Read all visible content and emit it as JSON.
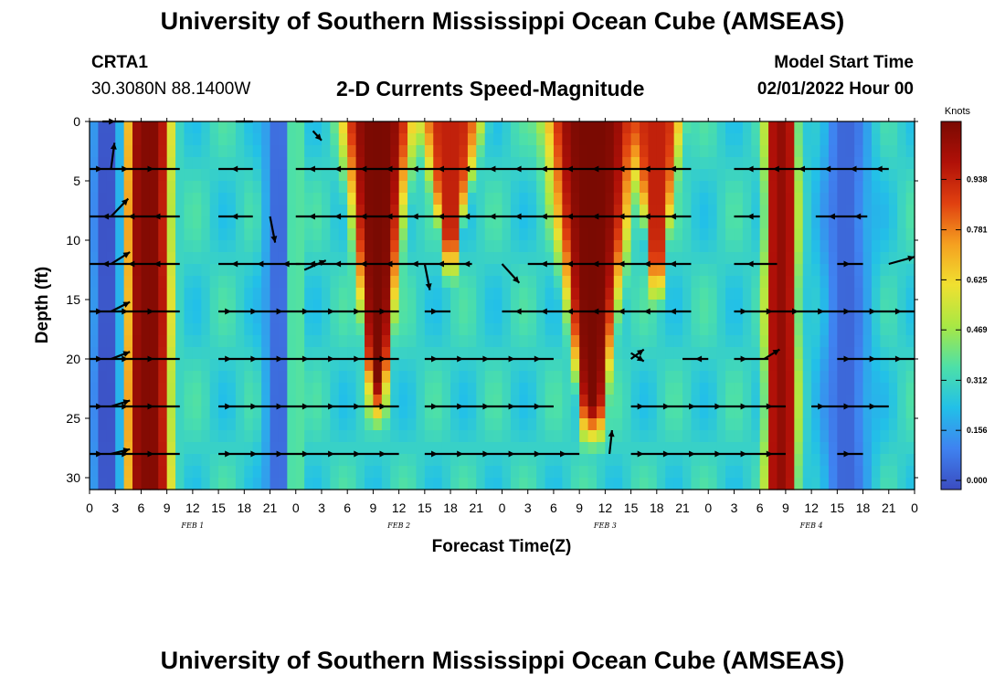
{
  "header": {
    "title": "University of Southern Mississippi Ocean Cube (AMSEAS)",
    "station_id": "CRTA1",
    "station_coords": "30.3080N  88.1400W",
    "plot_title": "2-D Currents Speed-Magnitude",
    "model_start_label": "Model Start Time",
    "model_start_value": "02/01/2022 Hour 00"
  },
  "footer": {
    "title": "University of Southern Mississippi Ocean Cube (AMSEAS)"
  },
  "colors": {
    "ramp": [
      "#3b4cc0",
      "#3f82f0",
      "#22c0e8",
      "#4de0a8",
      "#a8e844",
      "#f0e030",
      "#f5a020",
      "#e04010",
      "#b01008",
      "#7a0a02"
    ]
  },
  "chart_data": {
    "type": "heatmap",
    "title": "2-D Currents Speed-Magnitude",
    "xlabel": "Forecast Time(Z)",
    "ylabel": "Depth (ft)",
    "x_hours_range": [
      0,
      96
    ],
    "y_range": [
      0,
      31
    ],
    "x_ticks": [
      {
        "hour": 0,
        "label": "0"
      },
      {
        "hour": 3,
        "label": "3"
      },
      {
        "hour": 6,
        "label": "6"
      },
      {
        "hour": 9,
        "label": "9"
      },
      {
        "hour": 12,
        "label": "12"
      },
      {
        "hour": 15,
        "label": "15"
      },
      {
        "hour": 18,
        "label": "18"
      },
      {
        "hour": 21,
        "label": "21"
      },
      {
        "hour": 24,
        "label": "0"
      },
      {
        "hour": 27,
        "label": "3"
      },
      {
        "hour": 30,
        "label": "6"
      },
      {
        "hour": 33,
        "label": "9"
      },
      {
        "hour": 36,
        "label": "12"
      },
      {
        "hour": 39,
        "label": "15"
      },
      {
        "hour": 42,
        "label": "18"
      },
      {
        "hour": 45,
        "label": "21"
      },
      {
        "hour": 48,
        "label": "0"
      },
      {
        "hour": 51,
        "label": "3"
      },
      {
        "hour": 54,
        "label": "6"
      },
      {
        "hour": 57,
        "label": "9"
      },
      {
        "hour": 60,
        "label": "12"
      },
      {
        "hour": 63,
        "label": "15"
      },
      {
        "hour": 66,
        "label": "18"
      },
      {
        "hour": 69,
        "label": "21"
      },
      {
        "hour": 72,
        "label": "0"
      },
      {
        "hour": 75,
        "label": "3"
      },
      {
        "hour": 78,
        "label": "6"
      },
      {
        "hour": 81,
        "label": "9"
      },
      {
        "hour": 84,
        "label": "12"
      },
      {
        "hour": 87,
        "label": "15"
      },
      {
        "hour": 90,
        "label": "18"
      },
      {
        "hour": 93,
        "label": "21"
      },
      {
        "hour": 96,
        "label": "0"
      }
    ],
    "day_labels": [
      {
        "hour": 12,
        "label": "FEB 1"
      },
      {
        "hour": 36,
        "label": "FEB 2"
      },
      {
        "hour": 60,
        "label": "FEB 3"
      },
      {
        "hour": 84,
        "label": "FEB 4"
      }
    ],
    "y_ticks": [
      0,
      5,
      10,
      15,
      20,
      25,
      30
    ],
    "vector_depths": [
      0,
      4,
      8,
      12,
      16,
      20,
      24,
      28
    ],
    "speed_bands": [
      {
        "center": 2.0,
        "halfwidth": 1.3,
        "peak": 0.0,
        "kind": "dip"
      },
      {
        "center": 6.8,
        "halfwidth": 2.6,
        "peak": 0.98,
        "kind": "band"
      },
      {
        "center": 22.0,
        "halfwidth": 1.2,
        "peak": 0.05,
        "kind": "dip"
      },
      {
        "center": 24.0,
        "halfwidth": 0.9,
        "peak": 0.35,
        "kind": "band"
      },
      {
        "center": 33.5,
        "halfwidth": 4.0,
        "peak": 1.0,
        "kind": "wedge",
        "bottom": 22
      },
      {
        "center": 42.0,
        "halfwidth": 3.6,
        "peak": 0.85,
        "kind": "wedge",
        "bottom": 10
      },
      {
        "center": 58.5,
        "halfwidth": 5.5,
        "peak": 1.0,
        "kind": "wedge",
        "bottom": 24
      },
      {
        "center": 66.0,
        "halfwidth": 3.0,
        "peak": 0.85,
        "kind": "wedge",
        "bottom": 12
      },
      {
        "center": 80.5,
        "halfwidth": 1.8,
        "peak": 0.95,
        "kind": "band"
      },
      {
        "center": 88.0,
        "halfwidth": 2.0,
        "peak": 0.05,
        "kind": "dip"
      }
    ],
    "colorbar": {
      "label": "Knots",
      "ticks": [
        "0.938",
        "0.781",
        "0.625",
        "0.469",
        "0.312",
        "0.156",
        "0.000"
      ],
      "max": 1.09
    },
    "arrows": [
      {
        "depth": 0,
        "h0": 1.5,
        "h1": 4.0,
        "dir": 1
      },
      {
        "depth": 0,
        "h0": 17.0,
        "h1": 19.0,
        "dir": 1
      },
      {
        "depth": 0,
        "h0": 24.0,
        "h1": 26.0,
        "dir": 1
      },
      {
        "depth": 4,
        "h0": 0,
        "h1": 10.5,
        "dir": 1
      },
      {
        "depth": 4,
        "h0": 15.0,
        "h1": 19.0,
        "dir": -1
      },
      {
        "depth": 4,
        "h0": 24.0,
        "h1": 70.0,
        "dir": -1
      },
      {
        "depth": 4,
        "h0": 75.0,
        "h1": 93.0,
        "dir": -1
      },
      {
        "depth": 8,
        "h0": 0,
        "h1": 10.5,
        "dir": -1
      },
      {
        "depth": 8,
        "h0": 15.0,
        "h1": 19.0,
        "dir": -1
      },
      {
        "depth": 8,
        "h0": 24.0,
        "h1": 70.0,
        "dir": -1
      },
      {
        "depth": 8,
        "h0": 75.0,
        "h1": 78.0,
        "dir": -1
      },
      {
        "depth": 8,
        "h0": 84.5,
        "h1": 90.5,
        "dir": -1
      },
      {
        "depth": 12,
        "h0": 0,
        "h1": 10.5,
        "dir": -1
      },
      {
        "depth": 12,
        "h0": 15.0,
        "h1": 24.5,
        "dir": -1
      },
      {
        "depth": 12,
        "h0": 24.0,
        "h1": 44.5,
        "dir": -1
      },
      {
        "depth": 12,
        "h0": 51.0,
        "h1": 70.0,
        "dir": -1
      },
      {
        "depth": 12,
        "h0": 75.0,
        "h1": 80.0,
        "dir": -1
      },
      {
        "depth": 12,
        "h0": 87.0,
        "h1": 90.0,
        "dir": 1
      },
      {
        "depth": 16,
        "h0": 0,
        "h1": 10.5,
        "dir": 1
      },
      {
        "depth": 16,
        "h0": 15.0,
        "h1": 36.0,
        "dir": 1
      },
      {
        "depth": 16,
        "h0": 39.0,
        "h1": 42.0,
        "dir": 1
      },
      {
        "depth": 16,
        "h0": 48.0,
        "h1": 70.0,
        "dir": -1
      },
      {
        "depth": 16,
        "h0": 75.0,
        "h1": 96.0,
        "dir": 1
      },
      {
        "depth": 20,
        "h0": 0,
        "h1": 10.5,
        "dir": 1
      },
      {
        "depth": 20,
        "h0": 15.0,
        "h1": 36.0,
        "dir": 1
      },
      {
        "depth": 20,
        "h0": 39.0,
        "h1": 54.0,
        "dir": 1
      },
      {
        "depth": 20,
        "h0": 69.0,
        "h1": 72.0,
        "dir": -1
      },
      {
        "depth": 20,
        "h0": 75.0,
        "h1": 79.0,
        "dir": 1
      },
      {
        "depth": 20,
        "h0": 87.0,
        "h1": 96.0,
        "dir": 1
      },
      {
        "depth": 24,
        "h0": 0,
        "h1": 10.5,
        "dir": 1
      },
      {
        "depth": 24,
        "h0": 15.0,
        "h1": 36.0,
        "dir": 1
      },
      {
        "depth": 24,
        "h0": 39.0,
        "h1": 54.0,
        "dir": 1
      },
      {
        "depth": 24,
        "h0": 63.0,
        "h1": 69.0,
        "dir": 1
      },
      {
        "depth": 24,
        "h0": 69.0,
        "h1": 81.0,
        "dir": 1
      },
      {
        "depth": 24,
        "h0": 84.0,
        "h1": 93.0,
        "dir": 1
      },
      {
        "depth": 28,
        "h0": 0,
        "h1": 10.5,
        "dir": 1
      },
      {
        "depth": 28,
        "h0": 15.0,
        "h1": 36.0,
        "dir": 1
      },
      {
        "depth": 28,
        "h0": 39.0,
        "h1": 57.0,
        "dir": 1
      },
      {
        "depth": 28,
        "h0": 63.0,
        "h1": 81.0,
        "dir": 1
      },
      {
        "depth": 28,
        "h0": 87.0,
        "h1": 90.0,
        "dir": 1
      }
    ],
    "angled_arrows": [
      {
        "h": 2.5,
        "d": 4.0,
        "dh": 0.4,
        "dd": -2.2
      },
      {
        "h": 2.5,
        "d": 8.0,
        "dh": 2.0,
        "dd": -1.5
      },
      {
        "h": 2.5,
        "d": 12.0,
        "dh": 2.2,
        "dd": -1.0
      },
      {
        "h": 2.5,
        "d": 16.0,
        "dh": 2.2,
        "dd": -0.8
      },
      {
        "h": 2.5,
        "d": 20.0,
        "dh": 2.2,
        "dd": -0.6
      },
      {
        "h": 2.5,
        "d": 24.0,
        "dh": 2.2,
        "dd": -0.5
      },
      {
        "h": 2.5,
        "d": 28.0,
        "dh": 2.2,
        "dd": -0.4
      },
      {
        "h": 21.0,
        "d": 8.0,
        "dh": 0.6,
        "dd": 2.2
      },
      {
        "h": 26.0,
        "d": 0.8,
        "dh": 1.0,
        "dd": 0.8
      },
      {
        "h": 25.0,
        "d": 12.5,
        "dh": 2.5,
        "dd": -0.8
      },
      {
        "h": 39.0,
        "d": 12.0,
        "dh": 0.6,
        "dd": 2.2
      },
      {
        "h": 48.0,
        "d": 12.0,
        "dh": 2.0,
        "dd": 1.6
      },
      {
        "h": 60.5,
        "d": 28.0,
        "dh": 0.3,
        "dd": -2.0
      },
      {
        "h": 63.0,
        "d": 20.0,
        "dh": 1.5,
        "dd": -0.8
      },
      {
        "h": 63.0,
        "d": 19.5,
        "dh": 1.5,
        "dd": 0.7
      },
      {
        "h": 78.5,
        "d": 20.0,
        "dh": 1.8,
        "dd": -0.8
      },
      {
        "h": 93.0,
        "d": 12.0,
        "dh": 3.0,
        "dd": -0.6
      }
    ]
  }
}
